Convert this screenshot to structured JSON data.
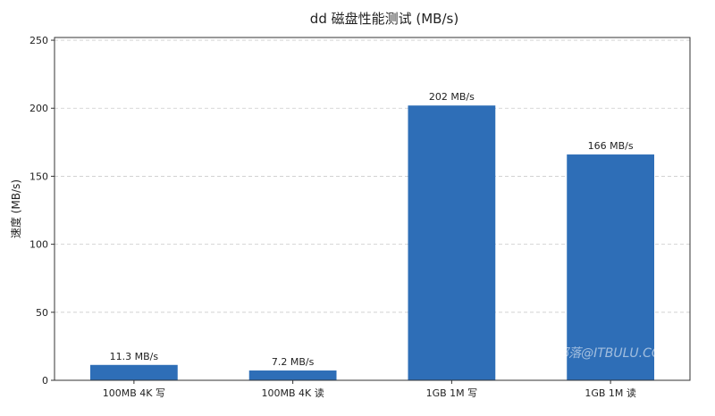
{
  "chart_data": {
    "type": "bar",
    "title": "dd 磁盘性能测试 (MB/s)",
    "xlabel": "",
    "ylabel": "速度 (MB/s)",
    "categories": [
      "100MB 4K 写",
      "100MB 4K 读",
      "1GB 1M 写",
      "1GB 1M 读"
    ],
    "values": [
      11.3,
      7.2,
      202,
      166
    ],
    "data_labels": [
      "11.3 MB/s",
      "7.2 MB/s",
      "202 MB/s",
      "166 MB/s"
    ],
    "ylim": [
      0,
      252
    ],
    "yticks": [
      0,
      50,
      100,
      150,
      200,
      250
    ],
    "grid": "y-dashed",
    "bar_color": "#2e6eb7"
  },
  "watermark": "老蒋部落@ITBULU.COM"
}
